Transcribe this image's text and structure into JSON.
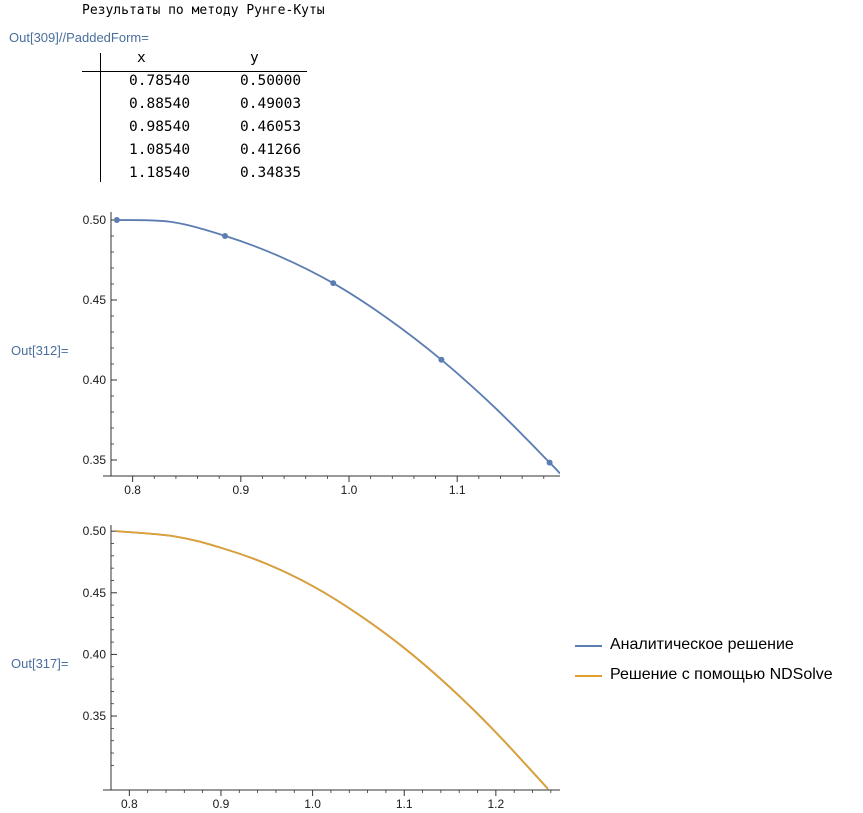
{
  "cells": {
    "print_text": "Результаты по методу Рунге-Куты",
    "out309_label": "Out[309]//PaddedForm=",
    "out312_label": "Out[312]=",
    "out317_label": "Out[317]="
  },
  "table": {
    "headers": [
      "x",
      "y"
    ],
    "rows": [
      [
        "0.78540",
        "0.50000"
      ],
      [
        "0.88540",
        "0.49003"
      ],
      [
        "0.98540",
        "0.46053"
      ],
      [
        "1.08540",
        "0.41266"
      ],
      [
        "1.18540",
        "0.34835"
      ]
    ]
  },
  "chart_data": [
    {
      "type": "line",
      "title": "",
      "xlabel": "",
      "ylabel": "",
      "xlim": [
        0.78,
        1.195
      ],
      "ylim": [
        0.34,
        0.505
      ],
      "x_ticks": [
        "0.8",
        "0.9",
        "1.0",
        "1.1"
      ],
      "y_ticks": [
        "0.50",
        "0.45",
        "0.40",
        "0.35"
      ],
      "color": "#5b7db1",
      "series": [
        {
          "values": [
            [
              0.7854,
              0.5
            ],
            [
              0.8354,
              0.4988
            ],
            [
              0.8854,
              0.4901
            ],
            [
              0.9354,
              0.4774
            ],
            [
              0.9854,
              0.4605
            ],
            [
              1.0354,
              0.4386
            ],
            [
              1.0854,
              0.4126
            ],
            [
              1.1354,
              0.3824
            ],
            [
              1.1854,
              0.3484
            ],
            [
              1.195,
              0.3415
            ]
          ]
        },
        {
          "values": [
            [
              0.7854,
              0.5
            ],
            [
              0.8854,
              0.49003
            ],
            [
              0.9854,
              0.46053
            ],
            [
              1.0854,
              0.41266
            ],
            [
              1.1854,
              0.34835
            ]
          ]
        }
      ]
    },
    {
      "type": "line",
      "title": "",
      "xlabel": "",
      "ylabel": "",
      "xlim": [
        0.78,
        1.27
      ],
      "ylim": [
        0.29,
        0.505
      ],
      "x_ticks": [
        "0.8",
        "0.9",
        "1.0",
        "1.1",
        "1.2"
      ],
      "y_ticks": [
        "0.50",
        "0.45",
        "0.40",
        "0.35"
      ],
      "series": [
        {
          "name": "Аналитическое решение",
          "color": "#5b7db1",
          "values": [
            [
              0.7854,
              0.5
            ],
            [
              0.85,
              0.4957
            ],
            [
              0.9,
              0.4865
            ],
            [
              0.95,
              0.4734
            ],
            [
              1.0,
              0.4555
            ],
            [
              1.05,
              0.4325
            ],
            [
              1.1,
              0.4052
            ],
            [
              1.15,
              0.3732
            ],
            [
              1.2,
              0.3368
            ],
            [
              1.25,
              0.2965
            ],
            [
              1.2567,
              0.291
            ]
          ]
        },
        {
          "name": "Решение с помощью NDSolve",
          "color": "#e0a030",
          "values": [
            [
              0.7854,
              0.5
            ],
            [
              0.85,
              0.4957
            ],
            [
              0.9,
              0.4865
            ],
            [
              0.95,
              0.4734
            ],
            [
              1.0,
              0.4555
            ],
            [
              1.05,
              0.4325
            ],
            [
              1.1,
              0.4052
            ],
            [
              1.15,
              0.3732
            ],
            [
              1.2,
              0.3368
            ],
            [
              1.25,
              0.2965
            ],
            [
              1.2567,
              0.291
            ]
          ]
        }
      ]
    }
  ]
}
